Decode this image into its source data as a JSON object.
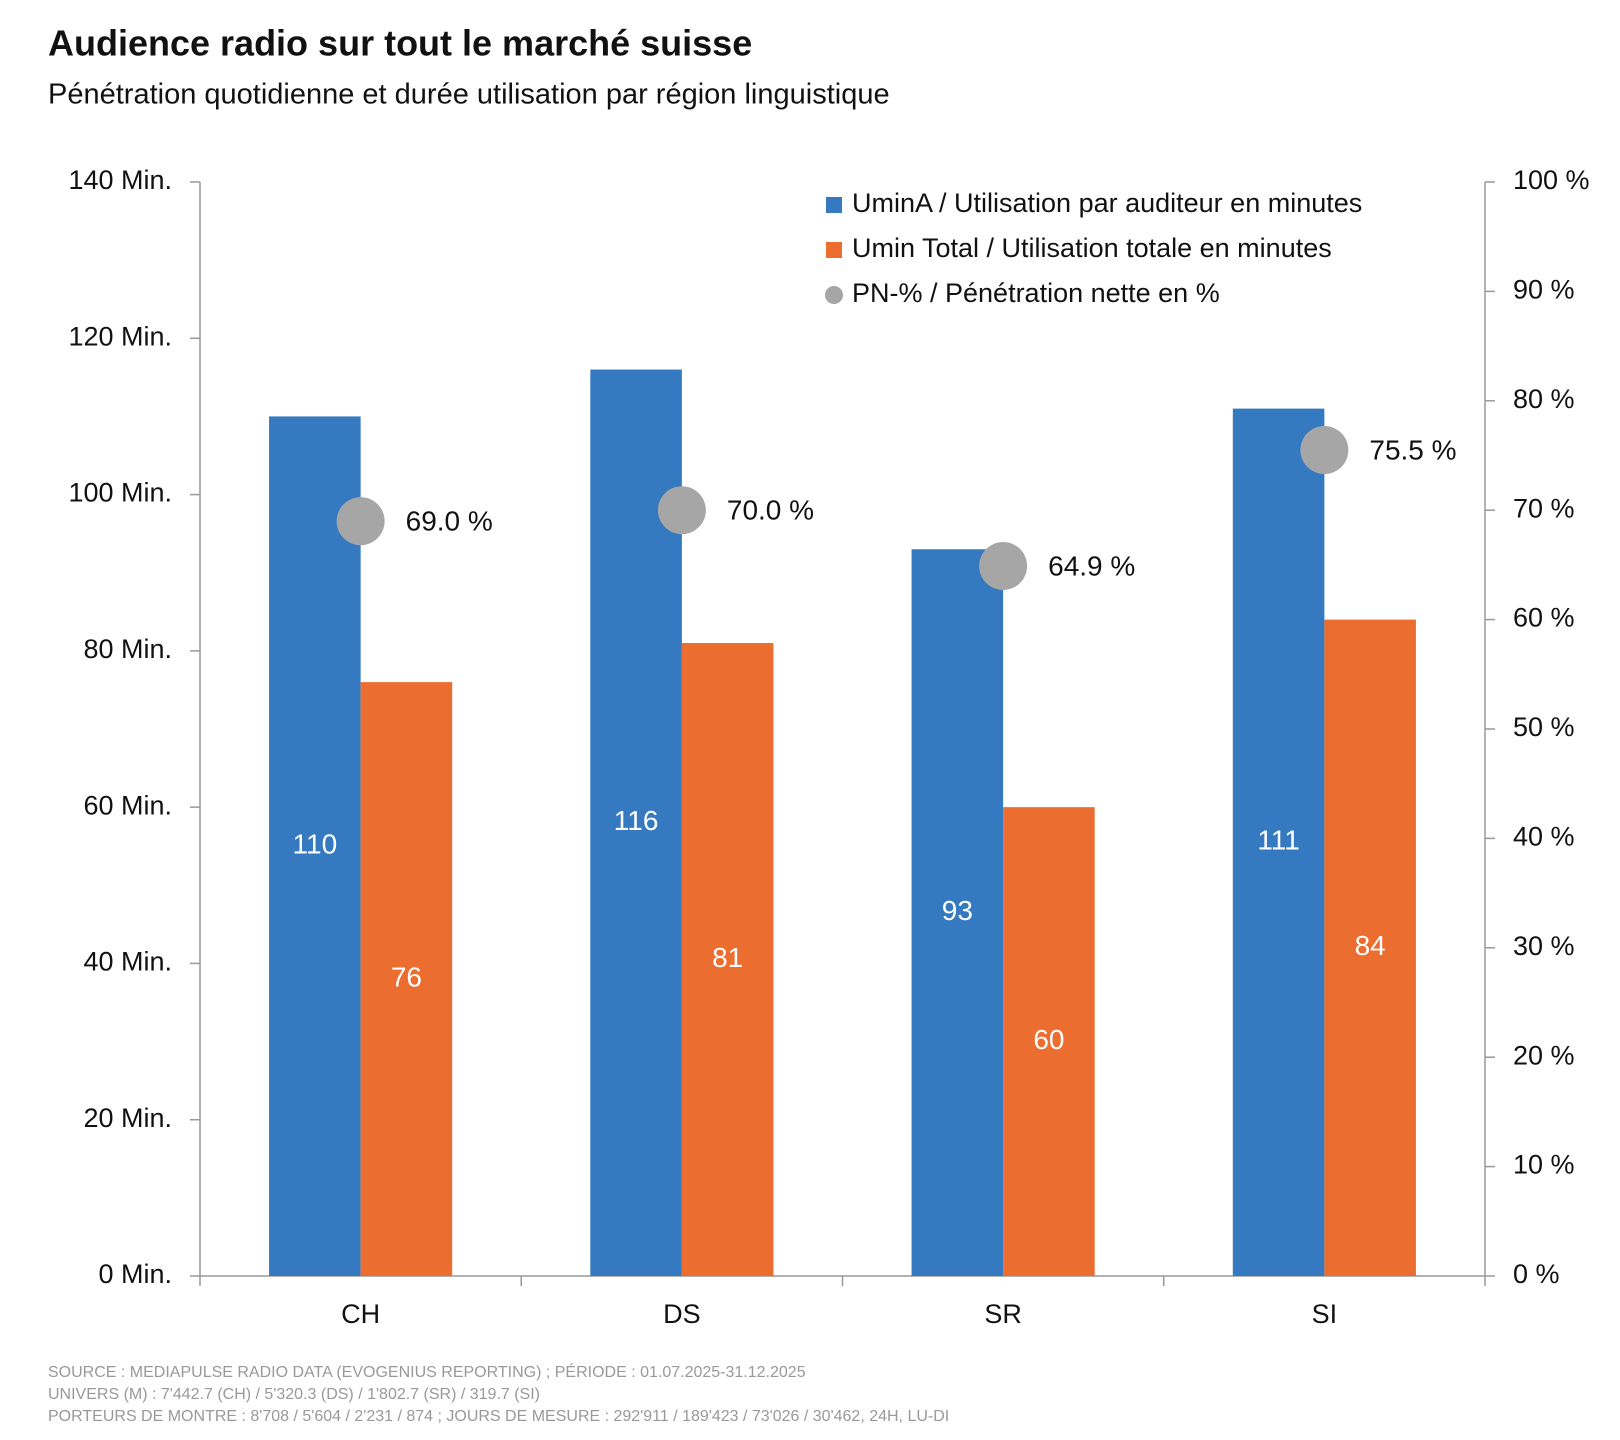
{
  "chart_data": {
    "type": "bar",
    "title": "Audience radio sur tout le marché suisse",
    "subtitle": "Pénétration quotidienne et durée utilisation par région linguistique",
    "categories": [
      "CH",
      "DS",
      "SR",
      "SI"
    ],
    "series": [
      {
        "name": "UminA / Utilisation par auditeur en minutes",
        "type": "bar",
        "color": "#3579c0",
        "values": [
          110,
          116,
          93,
          111
        ]
      },
      {
        "name": "Umin Total / Utilisation totale en minutes",
        "type": "bar",
        "color": "#eb6d2f",
        "values": [
          76,
          81,
          60,
          84
        ]
      },
      {
        "name": "PN-% / Pénétration nette en %",
        "type": "scatter",
        "color": "#a6a6a6",
        "axis": "y2",
        "values": [
          69.0,
          70.0,
          64.9,
          75.5
        ],
        "value_labels": [
          "69.0 %",
          "70.0 %",
          "64.9 %",
          "75.5 %"
        ]
      }
    ],
    "ylim": [
      0,
      140
    ],
    "yticks": [
      {
        "value": 0,
        "label": "0 Min."
      },
      {
        "value": 20,
        "label": "20 Min."
      },
      {
        "value": 40,
        "label": "40 Min."
      },
      {
        "value": 60,
        "label": "60 Min."
      },
      {
        "value": 80,
        "label": "80 Min."
      },
      {
        "value": 100,
        "label": "100 Min."
      },
      {
        "value": 120,
        "label": "120 Min."
      },
      {
        "value": 140,
        "label": "140 Min."
      }
    ],
    "y2lim": [
      0,
      100
    ],
    "y2ticks": [
      {
        "value": 0,
        "label": "0 %"
      },
      {
        "value": 10,
        "label": "10 %"
      },
      {
        "value": 20,
        "label": "20 %"
      },
      {
        "value": 30,
        "label": "30 %"
      },
      {
        "value": 40,
        "label": "40 %"
      },
      {
        "value": 50,
        "label": "50 %"
      },
      {
        "value": 60,
        "label": "60 %"
      },
      {
        "value": 70,
        "label": "70 %"
      },
      {
        "value": 80,
        "label": "80 %"
      },
      {
        "value": 90,
        "label": "90 %"
      },
      {
        "value": 100,
        "label": "100 %"
      }
    ],
    "grid": false,
    "legend": "top-right",
    "source": [
      "SOURCE : MEDIAPULSE RADIO DATA (EVOGENIUS REPORTING) ; PÉRIODE : 01.07.2025-31.12.2025",
      "UNIVERS (M) : 7'442.7 (CH) / 5'320.3 (DS) / 1'802.7 (SR) / 319.7 (SI)",
      "PORTEURS DE MONTRE : 8'708 / 5'604 / 2'231 / 874 ; JOURS DE MESURE : 292'911 / 189'423 / 73'026 / 30'462, 24H, LU-DI"
    ]
  }
}
